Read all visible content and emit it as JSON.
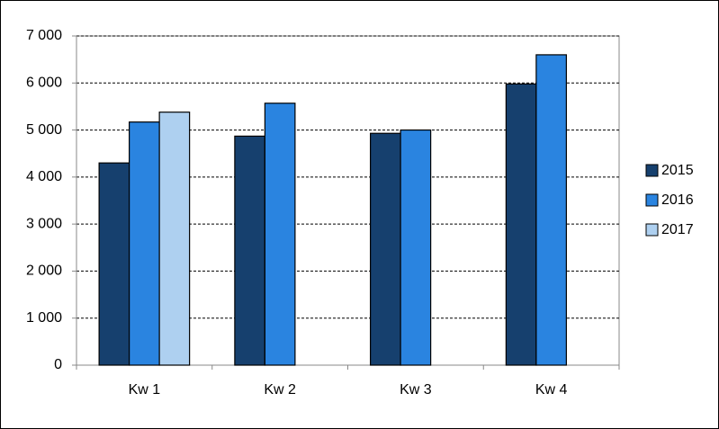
{
  "chart_data": {
    "type": "bar",
    "categories": [
      "Kw 1",
      "Kw 2",
      "Kw 3",
      "Kw 4"
    ],
    "series": [
      {
        "name": "2015",
        "color": "#16406e",
        "values": [
          4300,
          4870,
          4930,
          5980
        ]
      },
      {
        "name": "2016",
        "color": "#2a84e0",
        "values": [
          5170,
          5570,
          5000,
          6600
        ]
      },
      {
        "name": "2017",
        "color": "#aed0f0",
        "values": [
          5380,
          null,
          null,
          null
        ]
      }
    ],
    "ylim": [
      0,
      7000
    ],
    "yticks": [
      0,
      {
        "value": 1000,
        "label": "1 000"
      },
      {
        "value": 2000,
        "label": "2 000"
      },
      {
        "value": 3000,
        "label": "3 000"
      },
      {
        "value": 4000,
        "label": "4 000"
      },
      {
        "value": 5000,
        "label": "5 000"
      },
      {
        "value": 6000,
        "label": "6 000"
      },
      {
        "value": 7000,
        "label": "7 000"
      }
    ],
    "grid": true,
    "legend": "right"
  }
}
